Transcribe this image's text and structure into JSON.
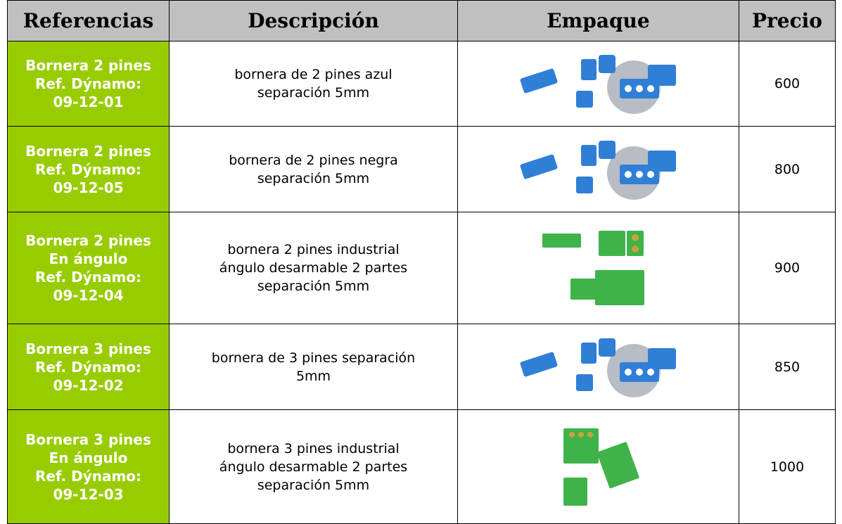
{
  "table": {
    "header": [
      "Referencias",
      "Descripción",
      "Empaque",
      "Precio"
    ],
    "rows": [
      {
        "reference": [
          "Bornera 2 pines",
          "Ref. Dýnamo:",
          "09-12-01"
        ],
        "description": [
          "bornera de 2 pines azul",
          "separación 5mm"
        ],
        "price": "600"
      },
      {
        "reference": [
          "Bornera 2 pines",
          "Ref. Dýnamo:",
          "09-12-05"
        ],
        "description": [
          "bornera de 2 pines negra",
          "separación 5mm"
        ],
        "price": "800"
      },
      {
        "reference": [
          "Bornera 2 pines",
          "En ángulo",
          "Ref. Dýnamo:",
          "09-12-04"
        ],
        "description": [
          "bornera 2 pines industrial",
          "ángulo desarmable 2 partes",
          "separación 5mm"
        ],
        "price": "900"
      },
      {
        "reference": [
          "Bornera 3 pines",
          "Ref. Dýnamo:",
          "09-12-02"
        ],
        "description": [
          "bornera de 3 pines separación",
          "5mm"
        ],
        "price": "850"
      },
      {
        "reference": [
          "Bornera 3 pines",
          "En ángulo",
          "Ref. Dýnamo:",
          "09-12-03"
        ],
        "description": [
          "bornera 3 pines industrial",
          "ángulo desarmable 2 partes",
          "separación 5mm"
        ],
        "price": "1000"
      }
    ]
  }
}
